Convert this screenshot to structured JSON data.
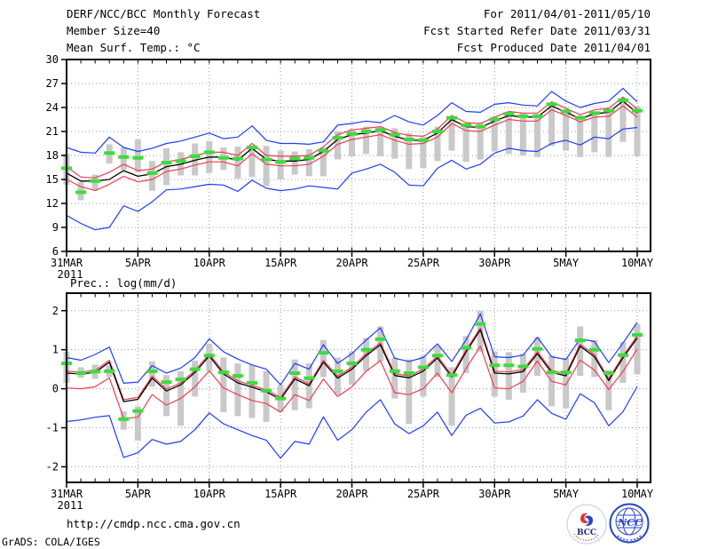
{
  "header": {
    "title": "DERF/NCC/BCC Monthly Forecast",
    "forecast_period": "For 2011/04/01-2011/05/10",
    "member_size": "Member Size=40",
    "refer_date": "Fcst Started Refer Date 2011/03/31",
    "produced_date": "Fcst Produced Date 2011/04/01",
    "variable_label": "Mean Surf. Temp.: °C"
  },
  "footer": {
    "url": "http://cmdp.ncc.cma.gov.cn",
    "credit": "GrADS: COLA/IGES",
    "logo_bcc_label": "BCC",
    "logo_ncc_label": "NCC"
  },
  "colors": {
    "mean_line": "#000000",
    "spread_line": "#f23c4e",
    "extreme_line": "#1e3cff",
    "observation_marker": "#3cdc3c",
    "member_bar": "#c9c9c9",
    "grid": "#999999",
    "frame": "#000000"
  },
  "chart_data": [
    {
      "type": "line",
      "title": "Mean Surf. Temp.: °C",
      "ylabel": "",
      "ylim": [
        6,
        30
      ],
      "yticks": [
        6,
        9,
        12,
        15,
        18,
        21,
        24,
        27,
        30
      ],
      "x_tick_labels": [
        "31MAR",
        "5APR",
        "10APR",
        "15APR",
        "20APR",
        "25APR",
        "30APR",
        "5MAY",
        "10MAY"
      ],
      "x_tick_days": [
        0,
        5,
        10,
        15,
        20,
        25,
        30,
        35,
        40
      ],
      "year_label": "2011",
      "grid": true,
      "series": [
        {
          "name": "member-spread-bar",
          "style": "bar",
          "color": "#c9c9c9",
          "ranges": [
            [
              14.3,
              18.2
            ],
            [
              12.4,
              14.7
            ],
            [
              13.7,
              15.6
            ],
            [
              17.0,
              19.4
            ],
            [
              16.2,
              19.0
            ],
            [
              15.9,
              20.0
            ],
            [
              13.6,
              17.3
            ],
            [
              14.3,
              18.9
            ],
            [
              15.5,
              18.4
            ],
            [
              15.5,
              19.5
            ],
            [
              15.8,
              19.8
            ],
            [
              16.2,
              19.0
            ],
            [
              15.1,
              19.1
            ],
            [
              15.3,
              19.0
            ],
            [
              14.2,
              19.2
            ],
            [
              15.0,
              18.6
            ],
            [
              15.6,
              18.5
            ],
            [
              15.4,
              18.8
            ],
            [
              15.4,
              19.0
            ],
            [
              17.5,
              21.0
            ],
            [
              17.9,
              21.3
            ],
            [
              18.2,
              21.6
            ],
            [
              17.9,
              21.5
            ],
            [
              17.6,
              21.4
            ],
            [
              16.3,
              20.8
            ],
            [
              16.4,
              20.3
            ],
            [
              17.3,
              21.6
            ],
            [
              18.6,
              22.9
            ],
            [
              17.2,
              22.0
            ],
            [
              17.5,
              22.1
            ],
            [
              18.5,
              22.9
            ],
            [
              18.2,
              23.5
            ],
            [
              18.0,
              23.3
            ],
            [
              17.8,
              23.2
            ],
            [
              19.2,
              24.6
            ],
            [
              18.6,
              23.8
            ],
            [
              17.8,
              23.0
            ],
            [
              18.4,
              23.5
            ],
            [
              17.8,
              23.8
            ],
            [
              19.7,
              25.2
            ],
            [
              17.9,
              24.2
            ]
          ]
        },
        {
          "name": "ensemble-max",
          "style": "line",
          "color": "#1e3cff",
          "values": [
            19.0,
            18.4,
            18.3,
            20.3,
            19.0,
            18.5,
            18.9,
            19.5,
            19.8,
            20.3,
            20.8,
            20.1,
            20.3,
            21.7,
            19.9,
            19.5,
            19.5,
            19.4,
            19.7,
            21.8,
            22.0,
            22.3,
            22.1,
            23.0,
            22.2,
            21.8,
            23.0,
            24.6,
            23.5,
            23.4,
            24.4,
            24.6,
            24.3,
            24.2,
            26.0,
            24.8,
            24.0,
            24.5,
            24.8,
            26.4,
            24.7
          ]
        },
        {
          "name": "mean-plus-spread",
          "style": "line",
          "color": "#f23c4e",
          "values": [
            16.6,
            15.3,
            15.2,
            15.9,
            16.9,
            16.1,
            16.3,
            17.2,
            17.5,
            18.0,
            18.4,
            18.4,
            18.0,
            19.5,
            18.0,
            17.9,
            17.9,
            18.0,
            19.1,
            20.6,
            21.2,
            21.4,
            21.6,
            20.9,
            20.5,
            20.4,
            21.3,
            23.0,
            22.1,
            22.0,
            22.8,
            23.5,
            23.3,
            23.3,
            24.7,
            23.9,
            23.1,
            23.7,
            23.9,
            25.3,
            23.8
          ]
        },
        {
          "name": "ensemble-mean",
          "style": "line",
          "color": "#000000",
          "values": [
            15.8,
            14.8,
            14.8,
            15.0,
            16.1,
            15.4,
            15.7,
            16.6,
            16.9,
            17.4,
            17.8,
            17.8,
            17.4,
            18.9,
            17.5,
            17.3,
            17.3,
            17.5,
            18.5,
            20.0,
            20.6,
            20.8,
            21.1,
            20.4,
            19.9,
            19.9,
            20.8,
            22.5,
            21.6,
            21.5,
            22.3,
            23.0,
            22.8,
            22.8,
            24.2,
            23.4,
            22.6,
            23.2,
            23.4,
            24.8,
            23.3
          ]
        },
        {
          "name": "mean-minus-spread",
          "style": "line",
          "color": "#f23c4e",
          "values": [
            15.0,
            14.1,
            13.6,
            14.4,
            15.4,
            14.7,
            15.0,
            16.0,
            16.3,
            16.8,
            17.2,
            17.2,
            16.7,
            18.2,
            16.9,
            16.7,
            16.7,
            16.9,
            17.9,
            19.4,
            20.0,
            20.3,
            20.6,
            19.9,
            19.4,
            19.5,
            20.3,
            22.0,
            21.1,
            21.0,
            21.8,
            22.5,
            22.3,
            22.3,
            23.7,
            23.0,
            22.2,
            22.8,
            22.9,
            24.2,
            22.8
          ]
        },
        {
          "name": "ensemble-min",
          "style": "line",
          "color": "#1e3cff",
          "values": [
            10.5,
            9.5,
            8.7,
            9.0,
            11.7,
            11.0,
            12.2,
            13.7,
            13.8,
            14.1,
            14.4,
            14.3,
            13.5,
            14.9,
            13.9,
            13.6,
            13.8,
            14.2,
            14.0,
            13.8,
            15.8,
            16.3,
            16.9,
            15.9,
            14.3,
            14.2,
            16.4,
            17.4,
            16.3,
            16.9,
            18.3,
            18.9,
            18.6,
            18.5,
            19.5,
            19.9,
            19.3,
            20.3,
            20.1,
            21.3,
            21.5
          ]
        },
        {
          "name": "observation-dash",
          "style": "marker",
          "color": "#3cdc3c",
          "values": [
            16.4,
            13.4,
            14.8,
            18.3,
            17.8,
            17.7,
            15.8,
            17.1,
            17.3,
            17.9,
            18.4,
            17.7,
            17.6,
            19.0,
            17.5,
            17.2,
            17.6,
            17.7,
            18.6,
            20.2,
            20.7,
            21.0,
            21.2,
            20.6,
            20.0,
            19.9,
            21.0,
            22.7,
            21.8,
            21.6,
            22.5,
            23.2,
            22.9,
            22.9,
            24.4,
            23.5,
            22.7,
            23.3,
            23.6,
            24.9,
            23.6
          ]
        }
      ]
    },
    {
      "type": "line",
      "title": "Prec.: log(mm/d)",
      "ylabel": "",
      "ylim": [
        -2.4,
        2.45
      ],
      "yticks": [
        -2,
        -1,
        0,
        1,
        2
      ],
      "x_tick_labels": [
        "31MAR",
        "5APR",
        "10APR",
        "15APR",
        "20APR",
        "25APR",
        "30APR",
        "5MAY",
        "10MAY"
      ],
      "x_tick_days": [
        0,
        5,
        10,
        15,
        20,
        25,
        30,
        35,
        40
      ],
      "year_label": "2011",
      "grid": true,
      "series": [
        {
          "name": "member-spread-bar",
          "style": "bar",
          "color": "#c9c9c9",
          "ranges": [
            [
              0.15,
              0.95
            ],
            [
              0.28,
              0.55
            ],
            [
              0.25,
              0.62
            ],
            [
              0.3,
              0.6
            ],
            [
              -1.05,
              -0.58
            ],
            [
              -1.33,
              -0.45
            ],
            [
              0.05,
              0.7
            ],
            [
              -0.7,
              0.35
            ],
            [
              -0.95,
              0.45
            ],
            [
              -0.2,
              0.72
            ],
            [
              0.45,
              1.15
            ],
            [
              -0.6,
              0.8
            ],
            [
              -0.7,
              0.65
            ],
            [
              -0.75,
              0.6
            ],
            [
              -0.85,
              0.45
            ],
            [
              -0.6,
              0.1
            ],
            [
              -0.55,
              0.75
            ],
            [
              -0.5,
              0.65
            ],
            [
              0.3,
              1.25
            ],
            [
              -0.15,
              0.8
            ],
            [
              0.1,
              0.95
            ],
            [
              0.45,
              1.3
            ],
            [
              0.7,
              1.6
            ],
            [
              -0.25,
              0.8
            ],
            [
              -0.9,
              0.75
            ],
            [
              -0.2,
              0.85
            ],
            [
              0.3,
              1.1
            ],
            [
              -0.95,
              0.55
            ],
            [
              0.4,
              1.35
            ],
            [
              0.95,
              2.0
            ],
            [
              -0.2,
              0.95
            ],
            [
              -0.28,
              0.94
            ],
            [
              -0.1,
              0.9
            ],
            [
              0.33,
              1.32
            ],
            [
              -0.45,
              0.85
            ],
            [
              -0.5,
              0.8
            ],
            [
              0.33,
              1.6
            ],
            [
              0.3,
              1.25
            ],
            [
              -0.55,
              0.48
            ],
            [
              0.15,
              1.2
            ],
            [
              0.37,
              1.66
            ]
          ]
        },
        {
          "name": "ensemble-max",
          "style": "line",
          "color": "#1e3cff",
          "values": [
            0.8,
            0.73,
            0.88,
            1.07,
            0.14,
            0.17,
            0.59,
            0.4,
            0.53,
            0.8,
            1.28,
            0.95,
            0.76,
            0.61,
            0.5,
            0.1,
            0.65,
            0.5,
            1.13,
            0.65,
            0.9,
            1.25,
            1.56,
            0.78,
            0.7,
            0.8,
            1.15,
            0.7,
            1.25,
            1.92,
            0.82,
            0.8,
            0.86,
            1.32,
            0.82,
            0.75,
            1.28,
            1.21,
            0.67,
            1.17,
            1.7
          ]
        },
        {
          "name": "mean-plus-spread",
          "style": "line",
          "color": "#f23c4e",
          "values": [
            0.45,
            0.43,
            0.47,
            0.73,
            -0.28,
            -0.22,
            0.32,
            -0.01,
            0.15,
            0.47,
            0.89,
            0.43,
            0.2,
            0.09,
            -0.03,
            -0.22,
            0.3,
            0.13,
            0.73,
            0.32,
            0.55,
            0.9,
            1.18,
            0.39,
            0.33,
            0.5,
            0.84,
            0.35,
            0.99,
            1.56,
            0.45,
            0.43,
            0.49,
            0.95,
            0.47,
            0.38,
            1.14,
            0.87,
            0.26,
            0.84,
            1.35
          ]
        },
        {
          "name": "ensemble-mean",
          "style": "line",
          "color": "#000000",
          "values": [
            0.4,
            0.38,
            0.42,
            0.68,
            -0.33,
            -0.27,
            0.27,
            -0.06,
            0.1,
            0.42,
            0.84,
            0.38,
            0.15,
            0.04,
            -0.08,
            -0.27,
            0.25,
            0.08,
            0.68,
            0.27,
            0.5,
            0.85,
            1.13,
            0.34,
            0.28,
            0.45,
            0.79,
            0.3,
            0.94,
            1.51,
            0.4,
            0.38,
            0.44,
            0.9,
            0.42,
            0.33,
            1.09,
            0.82,
            0.21,
            0.79,
            1.3
          ]
        },
        {
          "name": "mean-minus-spread",
          "style": "line",
          "color": "#f23c4e",
          "values": [
            0.02,
            0.0,
            0.05,
            0.28,
            -0.76,
            -0.73,
            -0.15,
            -0.42,
            -0.25,
            0.05,
            0.46,
            0.02,
            -0.15,
            -0.3,
            -0.38,
            -0.6,
            -0.15,
            -0.3,
            0.25,
            -0.2,
            0.05,
            0.45,
            0.72,
            -0.1,
            -0.15,
            0.0,
            0.4,
            -0.1,
            0.52,
            1.09,
            0.02,
            0.0,
            0.19,
            0.71,
            0.19,
            0.1,
            0.73,
            0.48,
            -0.02,
            0.44,
            1.02
          ]
        },
        {
          "name": "ensemble-min",
          "style": "line",
          "color": "#1e3cff",
          "values": [
            -0.84,
            -0.8,
            -0.73,
            -0.69,
            -1.76,
            -1.64,
            -1.3,
            -1.42,
            -1.35,
            -1.05,
            -0.62,
            -0.9,
            -1.05,
            -1.2,
            -1.32,
            -1.78,
            -1.35,
            -1.42,
            -0.72,
            -1.32,
            -1.05,
            -0.6,
            -0.28,
            -0.9,
            -1.15,
            -0.95,
            -0.6,
            -1.2,
            -0.68,
            -0.5,
            -0.88,
            -0.85,
            -0.7,
            -0.28,
            -0.63,
            -0.78,
            -0.13,
            -0.36,
            -0.95,
            -0.59,
            0.06
          ]
        },
        {
          "name": "observation-dash",
          "style": "marker",
          "color": "#3cdc3c",
          "values": [
            0.65,
            0.4,
            0.44,
            0.45,
            -0.78,
            -0.57,
            0.45,
            0.17,
            0.24,
            0.5,
            0.85,
            0.42,
            0.33,
            0.15,
            -0.05,
            -0.25,
            0.4,
            0.27,
            0.92,
            0.45,
            0.65,
            1.0,
            1.27,
            0.45,
            0.4,
            0.55,
            0.85,
            0.35,
            1.05,
            1.66,
            0.6,
            0.6,
            0.57,
            1.02,
            0.42,
            0.42,
            1.24,
            1.0,
            0.4,
            0.86,
            1.38
          ]
        }
      ]
    }
  ]
}
